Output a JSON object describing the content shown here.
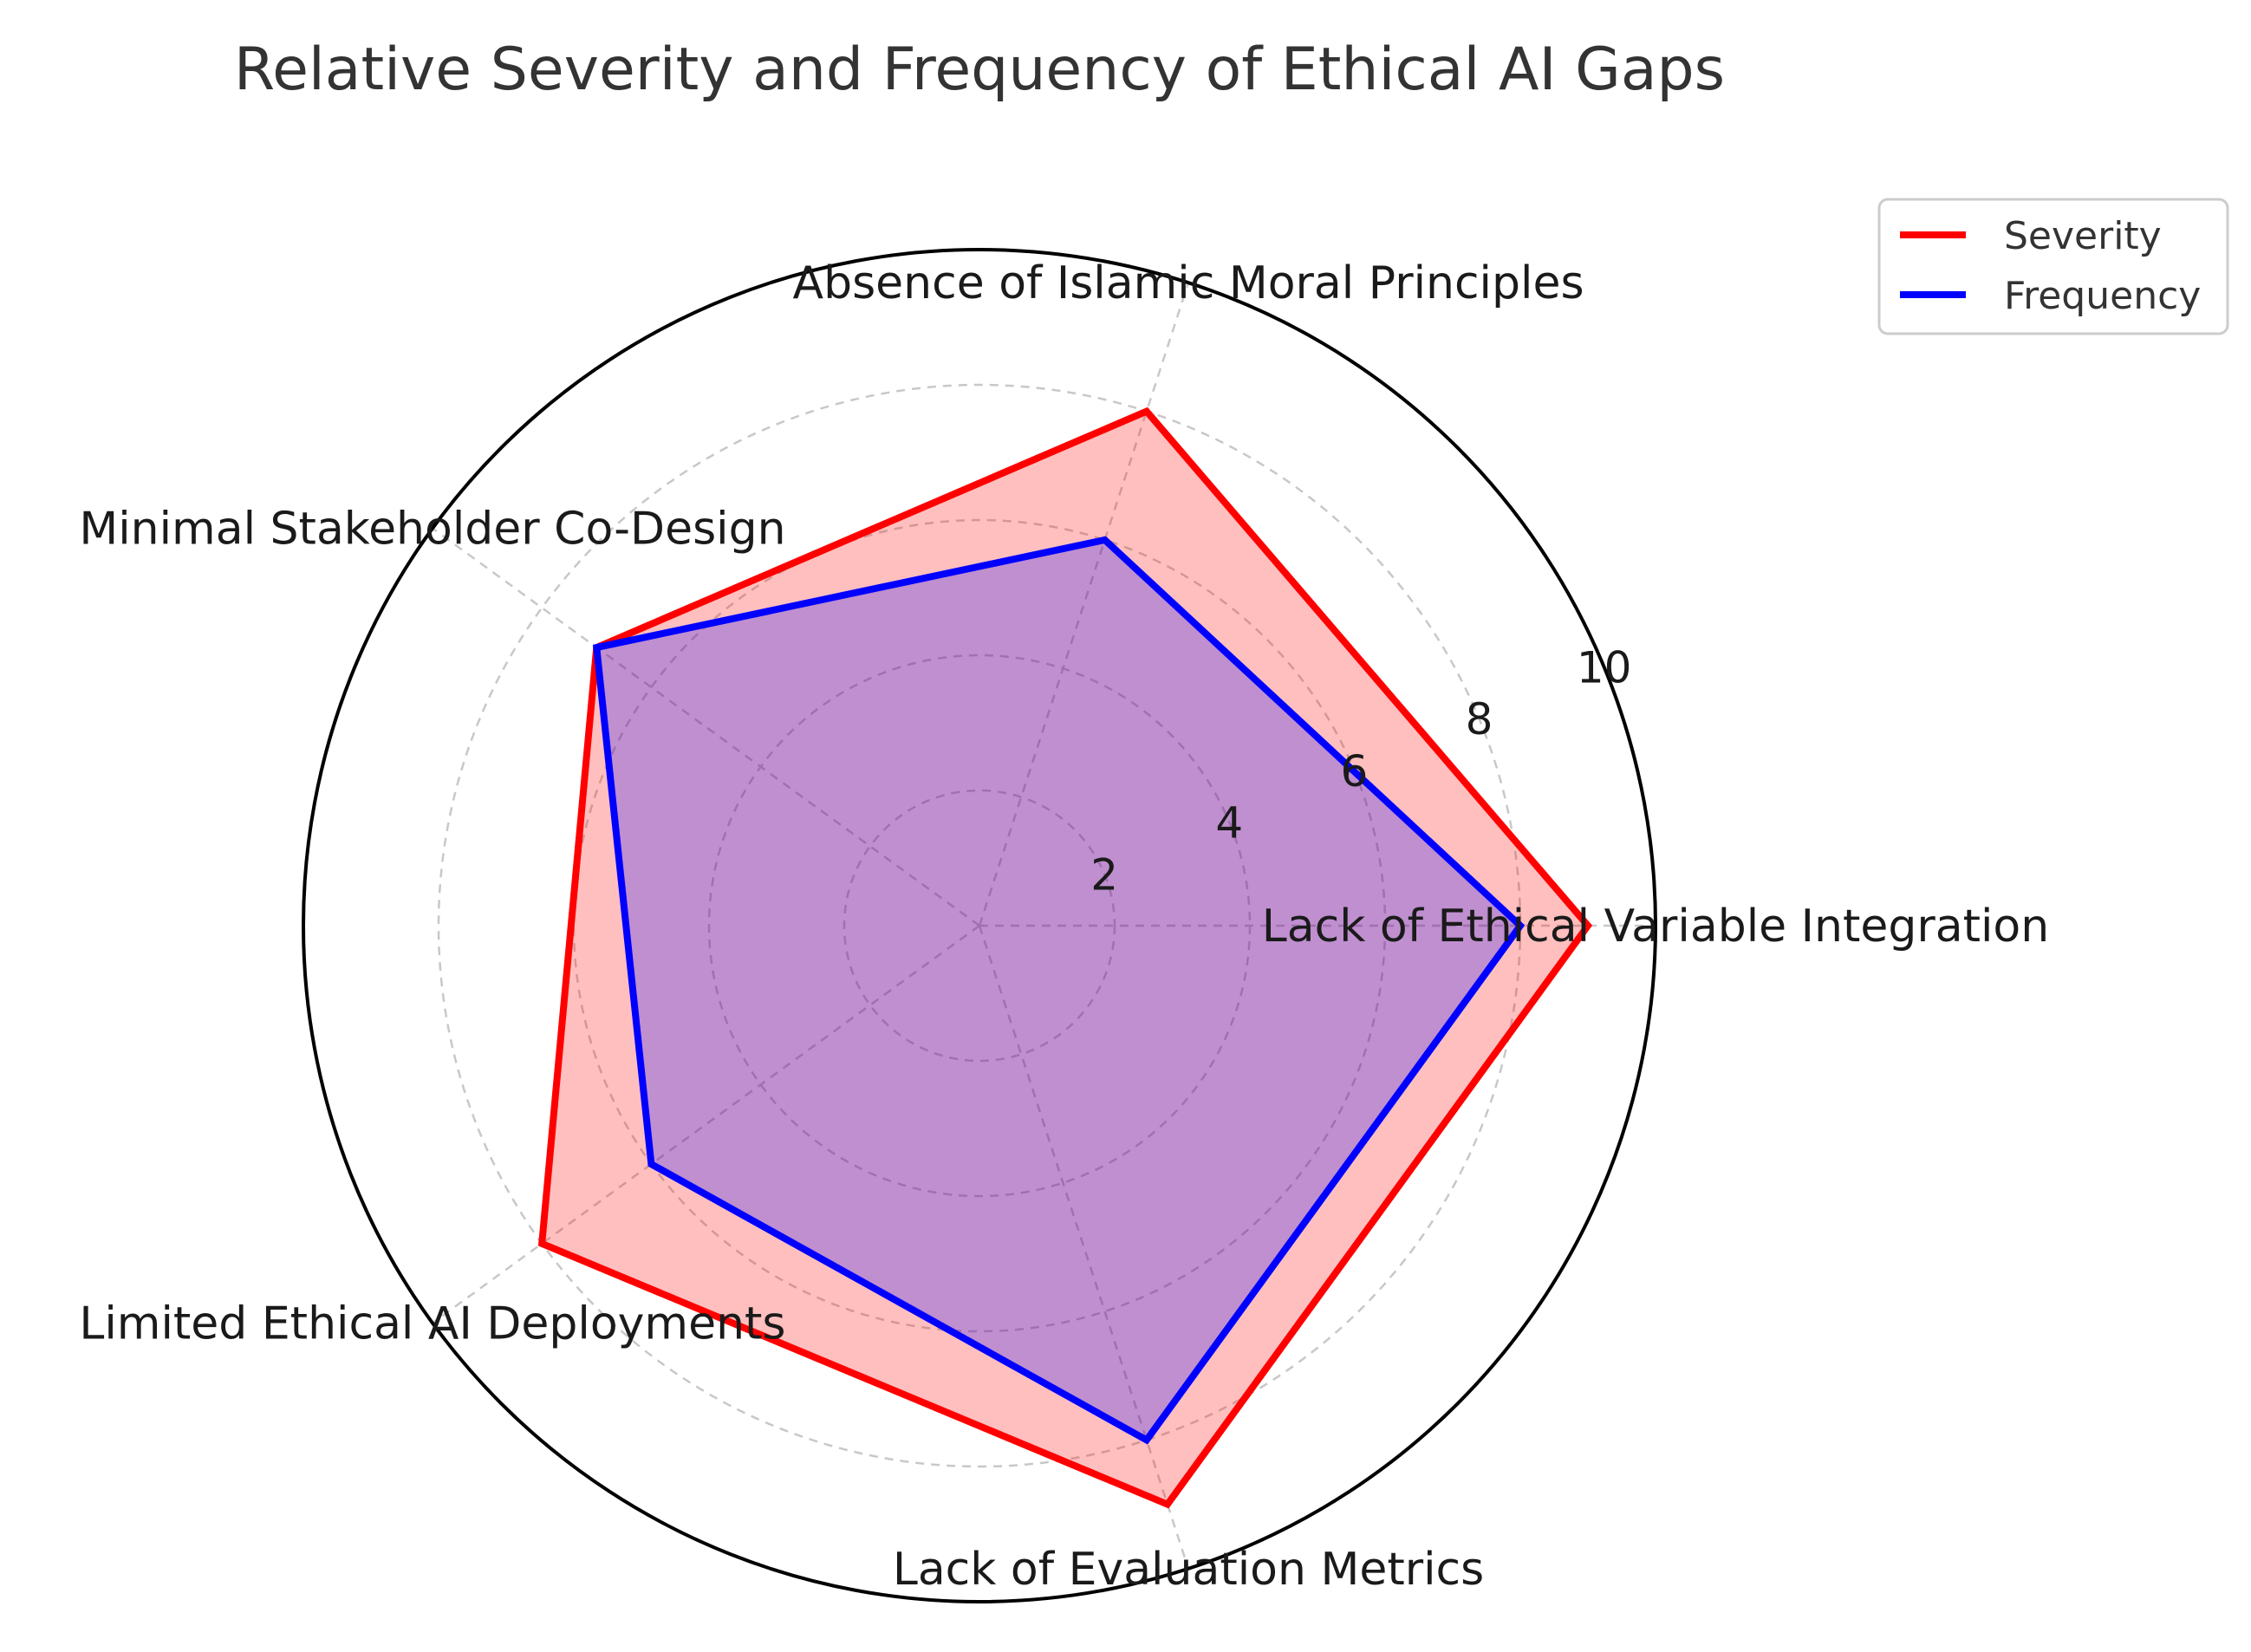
{
  "chart_data": {
    "type": "radar",
    "title": "Relative Severity and Frequency of Ethical AI Gaps",
    "categories": [
      "Lack of Ethical Variable Integration",
      "Absence of Islamic Moral Principles",
      "Minimal Stakeholder Co-Design",
      "Limited Ethical AI Deployments",
      "Lack of Evaluation Metrics"
    ],
    "series": [
      {
        "name": "Severity",
        "values": [
          9,
          8,
          7,
          8,
          9
        ],
        "color": "#ff0000",
        "fill": "#ff0000"
      },
      {
        "name": "Frequency",
        "values": [
          8,
          6,
          7,
          6,
          8
        ],
        "color": "#0000ff",
        "fill": "#0000ff"
      }
    ],
    "rlim": [
      0,
      10
    ],
    "rticks": [
      2,
      4,
      6,
      8,
      10
    ],
    "rtick_labels": [
      "2",
      "4",
      "6",
      "8",
      "10"
    ],
    "grid": true,
    "legend_position": "top-right"
  }
}
